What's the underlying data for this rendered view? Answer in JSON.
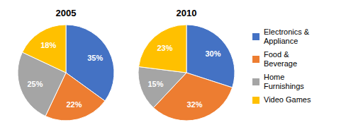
{
  "chart_data": [
    {
      "type": "pie",
      "title": "2005",
      "categories": [
        "Electronics &\nAppliance",
        "Food &\nBeverage",
        "Home\nFurnishings",
        "Video Games"
      ],
      "values": [
        35,
        22,
        25,
        18
      ],
      "value_labels": [
        "35%",
        "22%",
        "25%",
        "18%"
      ],
      "colors": [
        "#4472C4",
        "#ED7D31",
        "#A5A5A5",
        "#FFC000"
      ],
      "data_labels": true
    },
    {
      "type": "pie",
      "title": "2010",
      "categories": [
        "Electronics &\nAppliance",
        "Food &\nBeverage",
        "Home\nFurnishings",
        "Video Games"
      ],
      "values": [
        30,
        32,
        15,
        23
      ],
      "value_labels": [
        "30%",
        "32%",
        "15%",
        "23%"
      ],
      "colors": [
        "#4472C4",
        "#ED7D31",
        "#A5A5A5",
        "#FFC000"
      ],
      "data_labels": true,
      "legend": "right"
    }
  ]
}
